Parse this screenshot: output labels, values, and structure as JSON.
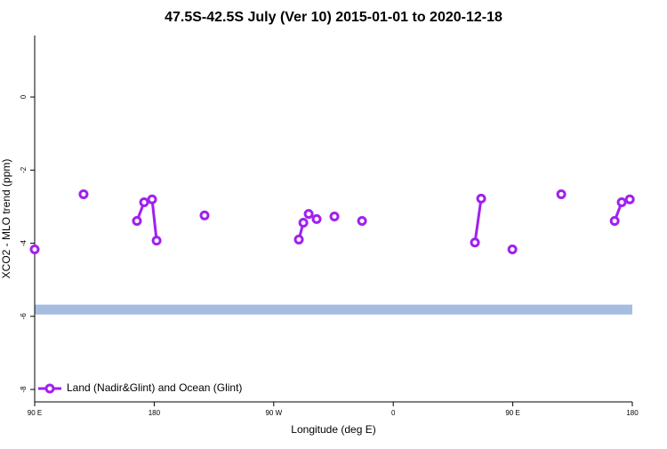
{
  "chart_data": {
    "type": "line",
    "title": "47.5S-42.5S July (Ver 10)   2015-01-01 to 2020-12-18",
    "xlabel": "Longitude (deg E)",
    "ylabel": "XCO2 - MLO trend (ppm)",
    "xlim": [
      90,
      540
    ],
    "ylim": [
      -8.34,
      1.68
    ],
    "xticks": [
      {
        "value": 90,
        "label": "90 E"
      },
      180,
      {
        "value": 270,
        "label": "90 W"
      },
      {
        "value": 360,
        "label": "0"
      },
      {
        "value": 450,
        "label": "90 E"
      },
      {
        "value": 540,
        "label": "180"
      }
    ],
    "yticks": [
      0,
      -2,
      -4,
      -6,
      -8
    ],
    "band": [
      -5.68,
      -5.95
    ],
    "band_color": "#a4bde0",
    "legend": "bottom-left",
    "series": [
      {
        "name": "Land (Nadir&Glint) and Ocean (Glint)",
        "color": "#a020f0",
        "x": [
          90,
          null,
          126.8,
          null,
          167,
          172.4,
          null,
          178.4,
          181.8,
          null,
          217.9,
          null,
          288.9,
          292.3,
          null,
          296.3,
          null,
          302.3,
          null,
          315.7,
          null,
          336.5,
          null,
          421.5,
          426.2,
          null,
          449.7,
          null,
          486.5,
          null,
          526.7,
          532,
          538.1
        ],
        "values": [
          -4.17,
          null,
          -2.66,
          null,
          -3.39,
          -2.88,
          null,
          -2.8,
          -3.93,
          null,
          -3.24,
          null,
          -3.9,
          -3.44,
          null,
          -3.2,
          null,
          -3.34,
          null,
          -3.27,
          null,
          -3.39,
          null,
          -3.98,
          -2.78,
          null,
          -4.17,
          null,
          -2.66,
          null,
          -3.39,
          -2.88,
          -2.8
        ]
      }
    ]
  }
}
